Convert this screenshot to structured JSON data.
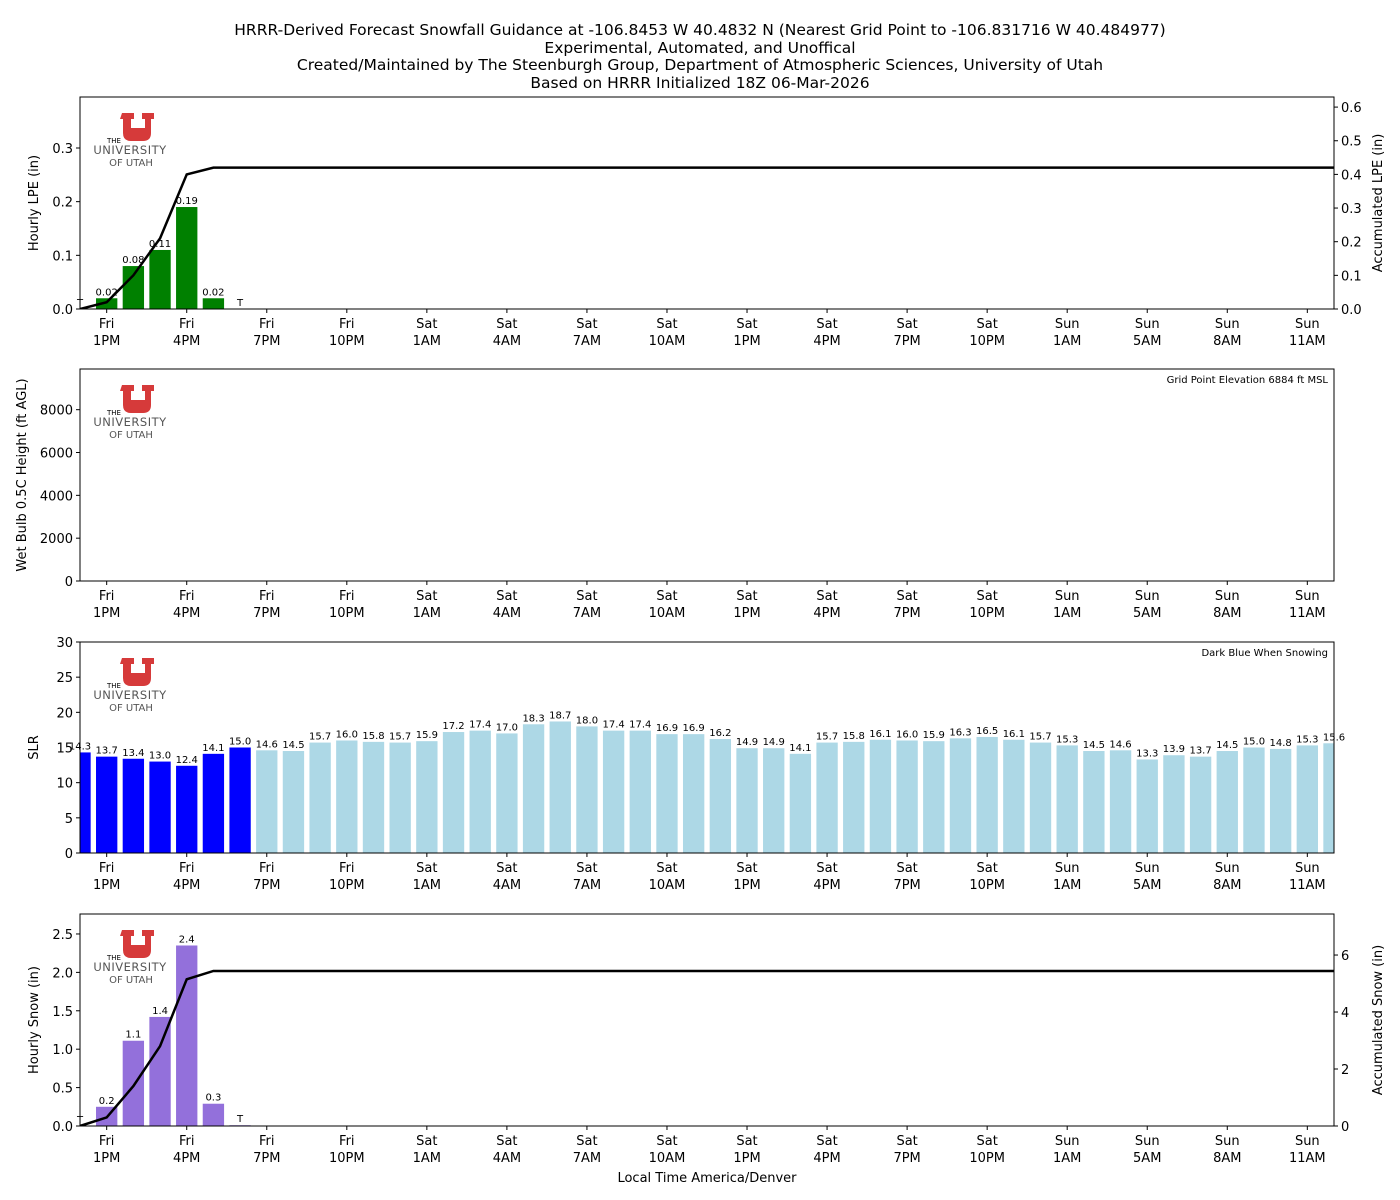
{
  "title_lines": [
    "HRRR-Derived Forecast Snowfall Guidance at -106.8453 W 40.4832 N (Nearest Grid Point to -106.831716 W 40.484977)",
    "Experimental, Automated, and Unoffical",
    "Created/Maintained by The Steenburgh Group, Department of Atmospheric Sciences, University of Utah",
    "Based on HRRR Initialized 18Z 06-Mar-2026"
  ],
  "logo": {
    "lines": [
      "THE",
      "UNIVERSITY",
      "OF UTAH"
    ],
    "color": "#d63a3a"
  },
  "x_axis": {
    "label": "Local Time America/Denver",
    "range": [
      0,
      47
    ],
    "ticks": [
      {
        "index": 1,
        "day": "Fri",
        "time": "1PM"
      },
      {
        "index": 4,
        "day": "Fri",
        "time": "4PM"
      },
      {
        "index": 7,
        "day": "Fri",
        "time": "7PM"
      },
      {
        "index": 10,
        "day": "Fri",
        "time": "10PM"
      },
      {
        "index": 13,
        "day": "Sat",
        "time": "1AM"
      },
      {
        "index": 16,
        "day": "Sat",
        "time": "4AM"
      },
      {
        "index": 19,
        "day": "Sat",
        "time": "7AM"
      },
      {
        "index": 22,
        "day": "Sat",
        "time": "10AM"
      },
      {
        "index": 25,
        "day": "Sat",
        "time": "1PM"
      },
      {
        "index": 28,
        "day": "Sat",
        "time": "4PM"
      },
      {
        "index": 31,
        "day": "Sat",
        "time": "7PM"
      },
      {
        "index": 34,
        "day": "Sat",
        "time": "10PM"
      },
      {
        "index": 37,
        "day": "Sun",
        "time": "1AM"
      },
      {
        "index": 40,
        "day": "Sun",
        "time": "5AM"
      },
      {
        "index": 43,
        "day": "Sun",
        "time": "8AM"
      },
      {
        "index": 46,
        "day": "Sun",
        "time": "11AM"
      }
    ]
  },
  "chart_data": [
    {
      "type": "bar",
      "ylabel": "Hourly LPE (in)",
      "ylim": [
        0,
        0.395
      ],
      "yticks": [
        "0.0",
        "0.1",
        "0.2",
        "0.3"
      ],
      "ytick_values": [
        0,
        0.1,
        0.2,
        0.3
      ],
      "bar_color": "#008000",
      "bars": [
        {
          "x": 0,
          "value": 0.0,
          "label": "T"
        },
        {
          "x": 1,
          "value": 0.02,
          "label": "0.02"
        },
        {
          "x": 2,
          "value": 0.08,
          "label": "0.08"
        },
        {
          "x": 3,
          "value": 0.11,
          "label": "0.11"
        },
        {
          "x": 4,
          "value": 0.19,
          "label": "0.19"
        },
        {
          "x": 5,
          "value": 0.02,
          "label": "0.02"
        },
        {
          "x": 6,
          "value": 0.0,
          "label": "T"
        }
      ],
      "secondary": {
        "type": "line",
        "ylabel": "Accumulated LPE (in)",
        "ylim": [
          0,
          0.63
        ],
        "yticks": [
          "0.0",
          "0.1",
          "0.2",
          "0.3",
          "0.4",
          "0.5",
          "0.6"
        ],
        "ytick_values": [
          0,
          0.1,
          0.2,
          0.3,
          0.4,
          0.5,
          0.6
        ],
        "color": "#000000",
        "x": [
          0,
          1,
          2,
          3,
          4,
          5,
          47
        ],
        "y": [
          0,
          0.02,
          0.1,
          0.21,
          0.4,
          0.42,
          0.42
        ]
      }
    },
    {
      "type": "bar",
      "ylabel": "Wet Bulb 0.5C Height (ft AGL)",
      "ylim": [
        0,
        9900
      ],
      "yticks": [
        "0",
        "2000",
        "4000",
        "6000",
        "8000"
      ],
      "ytick_values": [
        0,
        2000,
        4000,
        6000,
        8000
      ],
      "annotation": "Grid Point Elevation 6884 ft MSL",
      "bars": []
    },
    {
      "type": "bar",
      "ylabel": "SLR",
      "ylim": [
        0,
        30
      ],
      "yticks": [
        "0",
        "5",
        "10",
        "15",
        "20",
        "25",
        "30"
      ],
      "ytick_values": [
        0,
        5,
        10,
        15,
        20,
        25,
        30
      ],
      "annotation": "Dark Blue When Snowing",
      "snowing_color": "#0000ff",
      "not_snowing_color": "#add8e6",
      "snowing_count": 7,
      "values": [
        14.3,
        13.7,
        13.4,
        13.0,
        12.4,
        14.1,
        15.0,
        14.6,
        14.5,
        15.7,
        16.0,
        15.8,
        15.7,
        15.9,
        17.2,
        17.4,
        17.0,
        18.3,
        18.7,
        18.0,
        17.4,
        17.4,
        16.9,
        16.9,
        16.2,
        14.9,
        14.9,
        14.1,
        15.7,
        15.8,
        16.1,
        16.0,
        15.9,
        16.3,
        16.5,
        16.1,
        15.7,
        15.3,
        14.5,
        14.6,
        13.3,
        13.9,
        13.7,
        14.5,
        15.0,
        14.8,
        15.3,
        15.6
      ]
    },
    {
      "type": "bar",
      "ylabel": "Hourly Snow (in)",
      "ylim": [
        0,
        2.76
      ],
      "yticks": [
        "0.0",
        "0.5",
        "1.0",
        "1.5",
        "2.0",
        "2.5"
      ],
      "ytick_values": [
        0,
        0.5,
        1.0,
        1.5,
        2.0,
        2.5
      ],
      "bar_color": "#9370db",
      "bars": [
        {
          "x": 0,
          "value": 0.0,
          "label": "T"
        },
        {
          "x": 1,
          "value": 0.25,
          "label": "0.2"
        },
        {
          "x": 2,
          "value": 1.11,
          "label": "1.1"
        },
        {
          "x": 3,
          "value": 1.42,
          "label": "1.4"
        },
        {
          "x": 4,
          "value": 2.35,
          "label": "2.4"
        },
        {
          "x": 5,
          "value": 0.29,
          "label": "0.3"
        },
        {
          "x": 6,
          "value": 0.01,
          "label": "T"
        }
      ],
      "secondary": {
        "type": "line",
        "ylabel": "Accumulated Snow (in)",
        "ylim": [
          0,
          7.44
        ],
        "yticks": [
          "0",
          "2",
          "4",
          "6"
        ],
        "ytick_values": [
          0,
          2,
          4,
          6
        ],
        "color": "#000000",
        "x": [
          0,
          1,
          2,
          3,
          4,
          5,
          47
        ],
        "y": [
          0,
          0.3,
          1.4,
          2.8,
          5.15,
          5.44,
          5.44
        ]
      }
    }
  ]
}
